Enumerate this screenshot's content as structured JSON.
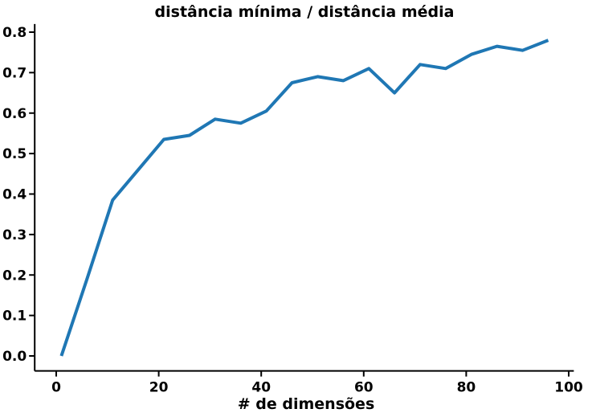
{
  "chart_data": {
    "type": "line",
    "title": "distância mínima / distância média",
    "xlabel": "# de dimensões",
    "ylabel": "",
    "x": [
      1,
      6,
      11,
      16,
      21,
      26,
      31,
      36,
      41,
      46,
      51,
      56,
      61,
      66,
      71,
      76,
      81,
      86,
      91,
      96
    ],
    "y": [
      0.0,
      0.19,
      0.385,
      0.46,
      0.535,
      0.545,
      0.585,
      0.575,
      0.605,
      0.675,
      0.69,
      0.68,
      0.71,
      0.65,
      0.72,
      0.71,
      0.745,
      0.765,
      0.755,
      0.78
    ],
    "x_ticks": [
      0,
      20,
      40,
      60,
      80,
      100
    ],
    "x_tick_labels": [
      "0",
      "20",
      "40",
      "60",
      "80",
      "100"
    ],
    "y_ticks": [
      0.0,
      0.1,
      0.2,
      0.3,
      0.4,
      0.5,
      0.6,
      0.7,
      0.8
    ],
    "y_tick_labels": [
      "0.0",
      "0.1",
      "0.2",
      "0.3",
      "0.4",
      "0.5",
      "0.6",
      "0.7",
      "0.8"
    ],
    "xlim": [
      -4.2,
      101.0
    ],
    "ylim": [
      -0.037,
      0.82
    ],
    "grid": false,
    "legend": false,
    "line_color": "#1f77b4",
    "axis_color": "#000000",
    "background_color": "#ffffff"
  }
}
